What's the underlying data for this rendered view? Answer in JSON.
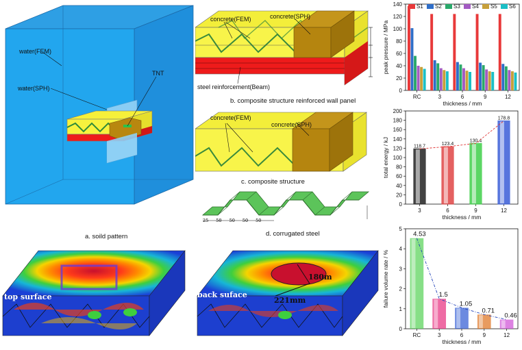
{
  "solid": {
    "water_fem": "water(FEM)",
    "water_sph": "water(SPH)",
    "tnt": "TNT",
    "caption": "a. soild pattern"
  },
  "panel_b": {
    "concrete_fem": "concrete(FEM)",
    "concrete_sph": "concrete(SPH)",
    "steel": "steel reinforcement(Beam)",
    "caption": "b. composite structure reinforced wall panel"
  },
  "panel_c": {
    "concrete_fem": "concrete(FEM)",
    "concrete_sph": "concrete(SPH)",
    "caption": "c. composite structure"
  },
  "panel_d": {
    "dims": [
      "25",
      "50",
      "50",
      "50",
      "50"
    ],
    "caption": "d. corrugated steel"
  },
  "contours": {
    "top_label": "top surface",
    "back_label": "back suface",
    "dim1": "180mm",
    "dim2": "221mm"
  },
  "chart_data": [
    {
      "type": "bar",
      "categories": [
        "RC",
        "3",
        "6",
        "9",
        "12"
      ],
      "series": [
        {
          "name": "S1",
          "values": [
            137,
            124,
            124,
            124,
            124
          ],
          "color": "#e8393a"
        },
        {
          "name": "S2",
          "values": [
            101,
            49,
            46,
            45,
            43
          ],
          "color": "#2f6ec8"
        },
        {
          "name": "S3",
          "values": [
            56,
            44,
            42,
            41,
            39
          ],
          "color": "#2aa86a"
        },
        {
          "name": "S4",
          "values": [
            40,
            36,
            36,
            34,
            33
          ],
          "color": "#a35bc2"
        },
        {
          "name": "S5",
          "values": [
            38,
            33,
            32,
            31,
            31
          ],
          "color": "#c7a03a"
        },
        {
          "name": "S6",
          "values": [
            35,
            31,
            30,
            30,
            29
          ],
          "color": "#1bbfc6"
        }
      ],
      "xlabel": "thickness / mm",
      "ylabel": "peak pressure / MPa",
      "ylim": [
        0,
        140
      ],
      "yticks": [
        0,
        20,
        40,
        60,
        80,
        100,
        120,
        140
      ],
      "legend": "top"
    },
    {
      "type": "bar",
      "categories": [
        "3",
        "6",
        "9",
        "12"
      ],
      "values": [
        118.7,
        123.4,
        130.4,
        178.8
      ],
      "labels": [
        "118.7",
        "123.4",
        "130.4",
        "178.8"
      ],
      "colors": [
        "#222222",
        "#e04545",
        "#3fcf4a",
        "#3a5ed8"
      ],
      "xlabel": "thickness / mm",
      "ylabel": "total energy / kJ",
      "ylim": [
        0,
        200
      ],
      "yticks": [
        0,
        20,
        40,
        60,
        80,
        100,
        120,
        140,
        160,
        180,
        200
      ]
    },
    {
      "type": "bar",
      "categories": [
        "RC",
        "3",
        "6",
        "9",
        "12"
      ],
      "values": [
        4.53,
        1.5,
        1.05,
        0.71,
        0.46
      ],
      "labels": [
        "4.53",
        "1.5",
        "1.05",
        "0.71",
        "0.46"
      ],
      "colors": [
        "#5fd45f",
        "#e83a86",
        "#3a63d6",
        "#e07a2a",
        "#d158d8"
      ],
      "xlabel": "thickness / mm",
      "ylabel": "failure volume rate / %",
      "ylim": [
        0,
        5
      ],
      "yticks": [
        0,
        1,
        2,
        3,
        4,
        5
      ]
    }
  ]
}
